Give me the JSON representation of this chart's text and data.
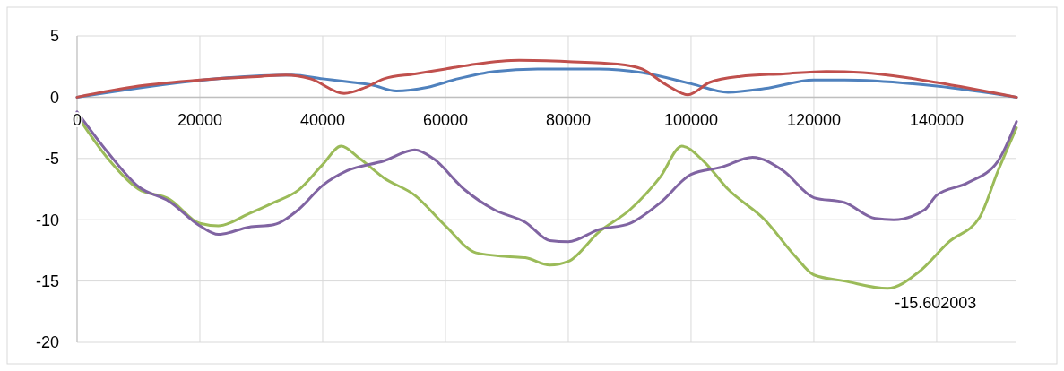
{
  "chart_data": {
    "type": "line",
    "xlim": [
      0,
      153000
    ],
    "xticks": [
      0,
      20000,
      40000,
      60000,
      80000,
      100000,
      120000,
      140000
    ],
    "ylim": [
      -20,
      5
    ],
    "yticks": [
      -20,
      -15,
      -10,
      -5,
      0,
      5
    ],
    "grid": true,
    "line_style": "solid",
    "marker": "none",
    "series": [
      {
        "color": "#4f81bd",
        "x": [
          0,
          35000,
          40000,
          45000,
          48000,
          52000,
          57000,
          62000,
          68000,
          75000,
          85000,
          92000,
          100000,
          106000,
          112000,
          120000,
          125000,
          140000,
          153000
        ],
        "values": [
          0,
          1.8,
          1.5,
          1.2,
          1.0,
          0.5,
          0.8,
          1.5,
          2.1,
          2.3,
          2.3,
          2.0,
          1.1,
          0.4,
          0.7,
          1.4,
          1.4,
          0.9,
          0
        ]
      },
      {
        "color": "#c0504d",
        "x": [
          0,
          10000,
          20000,
          30000,
          34000,
          38000,
          43500,
          47000,
          50000,
          55000,
          60000,
          65000,
          72000,
          80000,
          88000,
          92000,
          96000,
          99500,
          103000,
          108000,
          115000,
          122000,
          128000,
          135000,
          140000,
          153000
        ],
        "values": [
          0,
          0.9,
          1.4,
          1.7,
          1.8,
          1.5,
          0.3,
          0.8,
          1.5,
          1.9,
          2.3,
          2.7,
          3.0,
          2.9,
          2.7,
          2.3,
          1.0,
          0.2,
          1.2,
          1.7,
          1.9,
          2.1,
          2.0,
          1.6,
          1.2,
          0
        ]
      },
      {
        "color": "#9bbb59",
        "x": [
          0,
          5000,
          10000,
          15000,
          20000,
          23000,
          28000,
          32000,
          36000,
          40000,
          43000,
          46000,
          50000,
          55000,
          60000,
          65000,
          70000,
          73000,
          77000,
          80000,
          85000,
          90000,
          95000,
          98500,
          102000,
          106000,
          112000,
          117000,
          120000,
          125000,
          132000,
          137000,
          142000,
          147000,
          150000,
          153000
        ],
        "values": [
          -1.5,
          -5,
          -7.5,
          -8.3,
          -10.3,
          -10.5,
          -9.5,
          -8.6,
          -7.6,
          -5.5,
          -4.0,
          -5,
          -6.6,
          -8,
          -10.5,
          -12.7,
          -13,
          -13.1,
          -13.7,
          -13.4,
          -11,
          -9.2,
          -6.5,
          -4.0,
          -5.2,
          -7.5,
          -10,
          -13,
          -14.5,
          -15.0,
          -15.602003,
          -14.3,
          -11.8,
          -9.8,
          -6,
          -2.5
        ],
        "value_labels": [
          null,
          null,
          null,
          null,
          null,
          null,
          null,
          null,
          null,
          null,
          null,
          null,
          null,
          null,
          null,
          null,
          null,
          null,
          null,
          null,
          null,
          null,
          null,
          null,
          null,
          null,
          null,
          null,
          null,
          null,
          "-15.602003",
          null,
          null,
          null,
          null,
          null
        ]
      },
      {
        "color": "#8064a2",
        "x": [
          0,
          5000,
          10000,
          15000,
          20000,
          23000,
          28000,
          32000,
          36000,
          40000,
          44000,
          50000,
          55000,
          58000,
          63000,
          68000,
          73000,
          77000,
          80000,
          85000,
          90000,
          95000,
          100000,
          105000,
          110000,
          115000,
          120000,
          125000,
          130000,
          133000,
          138000,
          140000,
          145000,
          150000,
          153000
        ],
        "values": [
          -1.2,
          -4.5,
          -7.3,
          -8.5,
          -10.5,
          -11.2,
          -10.6,
          -10.4,
          -9.2,
          -7.2,
          -6,
          -5.2,
          -4.3,
          -5,
          -7.5,
          -9.2,
          -10.2,
          -11.7,
          -11.8,
          -10.8,
          -10.3,
          -8.6,
          -6.3,
          -5.7,
          -4.9,
          -6,
          -8.2,
          -8.6,
          -9.9,
          -10,
          -9.2,
          -8,
          -7,
          -5.2,
          -2
        ]
      }
    ]
  }
}
